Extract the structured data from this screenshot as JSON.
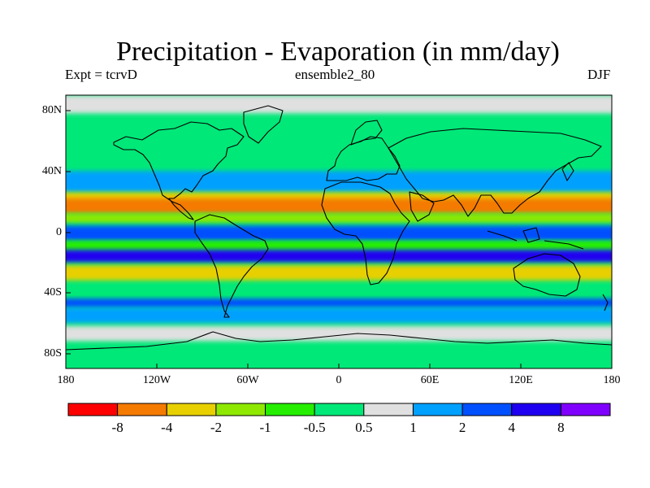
{
  "title": "Precipitation - Evaporation (in mm/day)",
  "subtitle_left": "Expt = tcrvD",
  "subtitle_center": "ensemble2_80",
  "subtitle_right": "DJF",
  "lat_labels": [
    "80N",
    "40N",
    "0",
    "40S",
    "80S"
  ],
  "lon_labels": [
    "180",
    "120W",
    "60W",
    "0",
    "60E",
    "120E",
    "180"
  ],
  "colorbar": {
    "colors": [
      "#ff0000",
      "#f47a00",
      "#e8d000",
      "#8ee800",
      "#26ee00",
      "#00e878",
      "#e0e0e0",
      "#00a0ff",
      "#0050ff",
      "#2000f0",
      "#8000ff"
    ],
    "labels": [
      "-8",
      "-4",
      "-2",
      "-1",
      "-0.5",
      "0.5",
      "1",
      "2",
      "4",
      "8"
    ]
  },
  "map": {
    "background_level": "#00e878",
    "regions": [
      {
        "level": "#e0e0e0",
        "lat": [
          90,
          78
        ]
      },
      {
        "level": "#00a0ff",
        "lat": [
          40,
          26
        ]
      },
      {
        "level": "#e8d000",
        "lat": [
          26,
          18
        ]
      },
      {
        "level": "#f47a00",
        "lat": [
          22,
          12
        ]
      },
      {
        "level": "#8ee800",
        "lat": [
          12,
          6
        ]
      },
      {
        "level": "#0050ff",
        "lat": [
          4,
          -6
        ]
      },
      {
        "level": "#26ee00",
        "lat": [
          -6,
          -12
        ]
      },
      {
        "level": "#2000f0",
        "lat": [
          -12,
          -20
        ]
      },
      {
        "level": "#e8d000",
        "lat": [
          -22,
          -32
        ]
      },
      {
        "level": "#0050ff",
        "lat": [
          -44,
          -50
        ]
      },
      {
        "level": "#00a0ff",
        "lat": [
          -50,
          -60
        ]
      },
      {
        "level": "#e0e0e0",
        "lat": [
          -62,
          -72
        ]
      }
    ]
  }
}
